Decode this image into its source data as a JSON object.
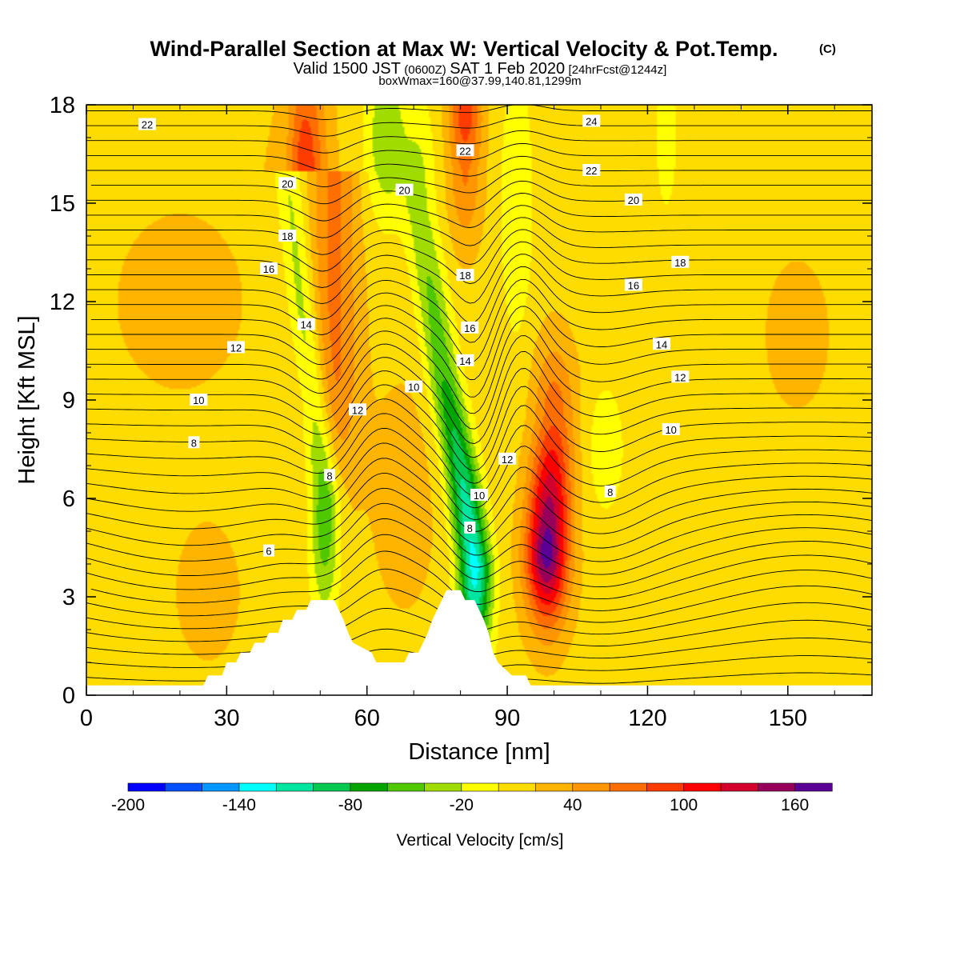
{
  "title": {
    "main": "Wind-Parallel Section at Max W: Vertical Velocity & Pot.Temp.",
    "copyright": "(C)",
    "valid_prefix": "Valid 1500 JST",
    "valid_zulu": "(0600Z)",
    "valid_date": "SAT 1 Feb 2020",
    "forecast": "[24hrFcst@1244z]",
    "boxmax": "boxWmax=160@37.99,140.81,1299m"
  },
  "chart_data": {
    "type": "heatmap",
    "xlabel": "Distance [nm]",
    "ylabel": "Height [Kft MSL]",
    "xlim": [
      0,
      168
    ],
    "ylim": [
      0,
      18
    ],
    "x_ticks": [
      0,
      30,
      60,
      90,
      120,
      150
    ],
    "y_ticks": [
      0,
      3,
      6,
      9,
      12,
      15,
      18
    ],
    "colorbar": {
      "label": "Vertical Velocity [cm/s]",
      "min": -200,
      "max": 180,
      "step": 20,
      "tick_values": [
        -200,
        -140,
        -80,
        -20,
        40,
        100,
        160
      ],
      "colors": [
        "#0000ff",
        "#0050ff",
        "#0096ff",
        "#00ffff",
        "#00e6a0",
        "#00c850",
        "#00a500",
        "#50c800",
        "#a0dc00",
        "#ffff00",
        "#ffdc00",
        "#ffb400",
        "#ff9600",
        "#ff6e00",
        "#ff3c00",
        "#ff0000",
        "#d2002d",
        "#96005a",
        "#5a0096"
      ]
    },
    "terrain_kft": [
      [
        0,
        0.3
      ],
      [
        25,
        0.3
      ],
      [
        26,
        0.6
      ],
      [
        29,
        0.6
      ],
      [
        30,
        1.0
      ],
      [
        32,
        1.0
      ],
      [
        33,
        1.3
      ],
      [
        35,
        1.3
      ],
      [
        36,
        1.6
      ],
      [
        38,
        1.6
      ],
      [
        39,
        1.9
      ],
      [
        41,
        1.9
      ],
      [
        42,
        2.3
      ],
      [
        44,
        2.3
      ],
      [
        45,
        2.6
      ],
      [
        47,
        2.6
      ],
      [
        48,
        2.9
      ],
      [
        53,
        2.9
      ],
      [
        54,
        2.6
      ],
      [
        55,
        2.3
      ],
      [
        56,
        1.9
      ],
      [
        57,
        1.6
      ],
      [
        61,
        1.3
      ],
      [
        62,
        1.0
      ],
      [
        68,
        1.0
      ],
      [
        69,
        1.3
      ],
      [
        71,
        1.3
      ],
      [
        72,
        1.6
      ],
      [
        73,
        1.9
      ],
      [
        74,
        2.3
      ],
      [
        75,
        2.6
      ],
      [
        76,
        2.9
      ],
      [
        77,
        3.2
      ],
      [
        80,
        3.2
      ],
      [
        81,
        2.9
      ],
      [
        83,
        2.9
      ],
      [
        84,
        2.6
      ],
      [
        85,
        2.3
      ],
      [
        86,
        1.9
      ],
      [
        87,
        1.3
      ],
      [
        88,
        1.0
      ],
      [
        91,
        0.6
      ],
      [
        94,
        0.6
      ],
      [
        95,
        0.3
      ],
      [
        168,
        0.3
      ]
    ],
    "updrafts": [
      {
        "x": [
          53,
          50,
          46
        ],
        "y": [
          16,
          13,
          10
        ],
        "w": [
          50,
          70,
          90
        ],
        "sx": 3.5,
        "sy": 2.6
      },
      {
        "x": [
          81,
          81
        ],
        "y": [
          16,
          17.5
        ],
        "w": [
          50,
          80
        ],
        "sx": 2.5,
        "sy": 1.6
      },
      {
        "x": [
          98.5,
          99,
          100
        ],
        "y": [
          4.5,
          6,
          8.5
        ],
        "w": [
          160,
          130,
          60
        ],
        "sx": 3.2,
        "sy": 1.6
      },
      {
        "x": [
          68
        ],
        "y": [
          6
        ],
        "w": [
          15
        ],
        "sx": 6,
        "sy": 3
      },
      {
        "x": [
          26
        ],
        "y": [
          3
        ],
        "w": [
          18
        ],
        "sx": 5,
        "sy": 1.5
      },
      {
        "x": [
          152
        ],
        "y": [
          11
        ],
        "w": [
          15
        ],
        "sx": 6,
        "sy": 2
      },
      {
        "x": [
          20
        ],
        "y": [
          12
        ],
        "w": [
          10
        ],
        "sx": 20,
        "sy": 4
      }
    ],
    "downdrafts": [
      {
        "x": [
          51,
          49,
          46,
          43
        ],
        "y": [
          6,
          9,
          12,
          16
        ],
        "w": [
          -80,
          -50,
          -45,
          -35
        ],
        "sx": 2.2,
        "sy": 2.4
      },
      {
        "x": [
          83,
          80,
          76,
          71
        ],
        "y": [
          4,
          7,
          10,
          15
        ],
        "w": [
          -140,
          -110,
          -70,
          -40
        ],
        "sx": 2.5,
        "sy": 2.2
      },
      {
        "x": [
          64
        ],
        "y": [
          17
        ],
        "w": [
          -50
        ],
        "sx": 3,
        "sy": 1.8
      },
      {
        "x": [
          92
        ],
        "y": [
          15
        ],
        "w": [
          -30
        ],
        "sx": 2.5,
        "sy": 3
      },
      {
        "x": [
          111
        ],
        "y": [
          7.5
        ],
        "w": [
          -25
        ],
        "sx": 3,
        "sy": 1.5
      },
      {
        "x": [
          124
        ],
        "y": [
          17
        ],
        "w": [
          -20
        ],
        "sx": 2,
        "sy": 2
      }
    ],
    "theta_contours": [
      {
        "label": "6",
        "label_x": 39,
        "label_y": 4.4
      },
      {
        "label": "8",
        "label_x": 23,
        "label_y": 7.7
      },
      {
        "label": "8",
        "label_x": 52,
        "label_y": 6.7
      },
      {
        "label": "8",
        "label_x": 82,
        "label_y": 5.1
      },
      {
        "label": "8",
        "label_x": 112,
        "label_y": 6.2
      },
      {
        "label": "10",
        "label_x": 24,
        "label_y": 9.0
      },
      {
        "label": "10",
        "label_x": 84,
        "label_y": 6.1
      },
      {
        "label": "10",
        "label_x": 125,
        "label_y": 8.1
      },
      {
        "label": "10",
        "label_x": 70,
        "label_y": 9.4
      },
      {
        "label": "12",
        "label_x": 32,
        "label_y": 10.6
      },
      {
        "label": "12",
        "label_x": 58,
        "label_y": 8.7
      },
      {
        "label": "12",
        "label_x": 90,
        "label_y": 7.2
      },
      {
        "label": "12",
        "label_x": 127,
        "label_y": 9.7
      },
      {
        "label": "14",
        "label_x": 47,
        "label_y": 11.3
      },
      {
        "label": "14",
        "label_x": 81,
        "label_y": 10.2
      },
      {
        "label": "14",
        "label_x": 123,
        "label_y": 10.7
      },
      {
        "label": "16",
        "label_x": 39,
        "label_y": 13.0
      },
      {
        "label": "16",
        "label_x": 82,
        "label_y": 11.2
      },
      {
        "label": "16",
        "label_x": 117,
        "label_y": 12.5
      },
      {
        "label": "18",
        "label_x": 43,
        "label_y": 14.0
      },
      {
        "label": "18",
        "label_x": 81,
        "label_y": 12.8
      },
      {
        "label": "18",
        "label_x": 127,
        "label_y": 13.2
      },
      {
        "label": "20",
        "label_x": 43,
        "label_y": 15.6
      },
      {
        "label": "20",
        "label_x": 68,
        "label_y": 15.4
      },
      {
        "label": "20",
        "label_x": 117,
        "label_y": 15.1
      },
      {
        "label": "22",
        "label_x": 13,
        "label_y": 17.4
      },
      {
        "label": "22",
        "label_x": 81,
        "label_y": 16.6
      },
      {
        "label": "22",
        "label_x": 108,
        "label_y": 16.0
      },
      {
        "label": "24",
        "label_x": 108,
        "label_y": 17.5
      }
    ]
  }
}
